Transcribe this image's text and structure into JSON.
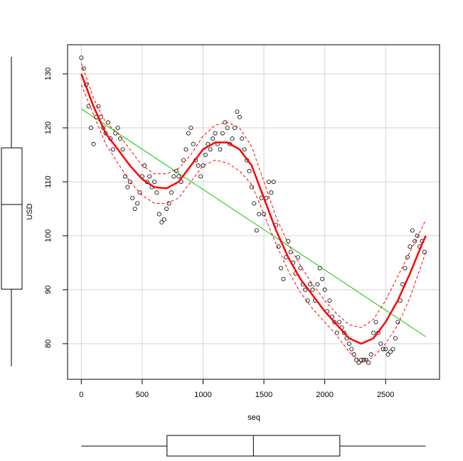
{
  "chart_data": {
    "type": "scatter",
    "x_label": "seq",
    "y_label": "USD",
    "xlim": [
      -113,
      2943
    ],
    "ylim": [
      73.4,
      135.4
    ],
    "xticks": [
      0,
      500,
      1000,
      1500,
      2000,
      2500
    ],
    "yticks": [
      80,
      90,
      100,
      110,
      120,
      130
    ],
    "grid": true,
    "color": "#000000",
    "x": [
      0,
      20,
      40,
      60,
      80,
      100,
      120,
      140,
      160,
      180,
      200,
      220,
      240,
      260,
      280,
      300,
      320,
      340,
      360,
      380,
      400,
      420,
      440,
      460,
      480,
      500,
      520,
      540,
      560,
      580,
      600,
      620,
      640,
      660,
      680,
      700,
      720,
      740,
      760,
      780,
      800,
      820,
      840,
      860,
      880,
      900,
      920,
      940,
      960,
      980,
      1000,
      1020,
      1040,
      1060,
      1080,
      1100,
      1120,
      1140,
      1160,
      1180,
      1200,
      1220,
      1240,
      1260,
      1280,
      1300,
      1320,
      1340,
      1360,
      1380,
      1400,
      1420,
      1440,
      1460,
      1480,
      1500,
      1520,
      1540,
      1560,
      1580,
      1600,
      1620,
      1640,
      1660,
      1680,
      1700,
      1720,
      1740,
      1760,
      1780,
      1800,
      1820,
      1840,
      1860,
      1880,
      1900,
      1920,
      1940,
      1960,
      1980,
      2000,
      2020,
      2040,
      2060,
      2080,
      2100,
      2120,
      2140,
      2160,
      2180,
      2200,
      2220,
      2240,
      2260,
      2280,
      2300,
      2320,
      2340,
      2360,
      2380,
      2400,
      2420,
      2440,
      2460,
      2480,
      2500,
      2520,
      2540,
      2560,
      2580,
      2600,
      2620,
      2640,
      2660,
      2680,
      2700,
      2720,
      2740,
      2760,
      2780,
      2800,
      2820
    ],
    "values": [
      133,
      131,
      128,
      124,
      120,
      117,
      122,
      124,
      122,
      120,
      119,
      121,
      118,
      116,
      119,
      120,
      118,
      116,
      111,
      109,
      110,
      107,
      105,
      106,
      108,
      111,
      113,
      110,
      111,
      109,
      110,
      108,
      104,
      102.5,
      103,
      105,
      106,
      108,
      111,
      112,
      111,
      110,
      114,
      116,
      119,
      120,
      117,
      114,
      113,
      111,
      113,
      115,
      117,
      116,
      118,
      119,
      117,
      116,
      119,
      121,
      120,
      117,
      118,
      120,
      123,
      122,
      118,
      116,
      114,
      112,
      109,
      106,
      101,
      104,
      107,
      104,
      107,
      110,
      108,
      110,
      102,
      98,
      94,
      92,
      96,
      99,
      97,
      95,
      93,
      96,
      94,
      91,
      90,
      88,
      91,
      90,
      88,
      91,
      94,
      92,
      90,
      86,
      88,
      85,
      84,
      82,
      84,
      83,
      82,
      81,
      80,
      79,
      78,
      77,
      76.5,
      77,
      77,
      77,
      76.5,
      78,
      82,
      84,
      82,
      80,
      79,
      79,
      78,
      78.5,
      79,
      81,
      84,
      88,
      91,
      94,
      96,
      98,
      101,
      99,
      100,
      98,
      99,
      97
    ],
    "linear_fit": {
      "color": "#00cc00",
      "x": [
        0,
        2830
      ],
      "values": [
        123.5,
        81.3
      ]
    },
    "smooth": {
      "color": "#ff0000",
      "x": [
        0,
        100,
        200,
        300,
        400,
        500,
        600,
        700,
        800,
        900,
        1000,
        1100,
        1200,
        1300,
        1400,
        1500,
        1600,
        1700,
        1800,
        1900,
        2000,
        2100,
        2200,
        2300,
        2400,
        2500,
        2600,
        2700,
        2800,
        2830
      ],
      "fit": [
        130,
        124,
        119,
        116,
        113,
        110.5,
        109,
        108.8,
        110,
        113,
        116,
        117.3,
        117.3,
        116,
        113,
        107,
        101,
        96,
        92,
        89,
        86,
        83.5,
        81,
        80,
        81,
        84,
        88,
        93,
        98.5,
        100
      ],
      "upper": [
        132,
        125.5,
        121,
        119,
        116,
        113,
        111.5,
        111.5,
        112.5,
        115,
        118.5,
        120.5,
        121,
        120,
        116.5,
        110,
        103.5,
        98.5,
        94.5,
        91,
        88,
        85.5,
        83.5,
        83,
        84.5,
        88,
        92.5,
        97,
        101.5,
        103
      ],
      "lower": [
        128,
        122.5,
        117,
        113.5,
        110,
        107.5,
        106,
        106,
        107,
        110,
        113,
        114,
        113.5,
        112,
        109.5,
        104,
        98.5,
        93.5,
        89.5,
        86.5,
        84,
        81.5,
        78.5,
        76.5,
        77.5,
        80,
        83.5,
        88.5,
        95,
        97
      ]
    },
    "y_boxplot": {
      "min": 75.8,
      "q1": 90.1,
      "median": 105.8,
      "q3": 116.3,
      "max": 133.2
    },
    "x_boxplot": {
      "min": 0,
      "q1": 704,
      "median": 1414,
      "q3": 2124,
      "max": 2829
    }
  }
}
